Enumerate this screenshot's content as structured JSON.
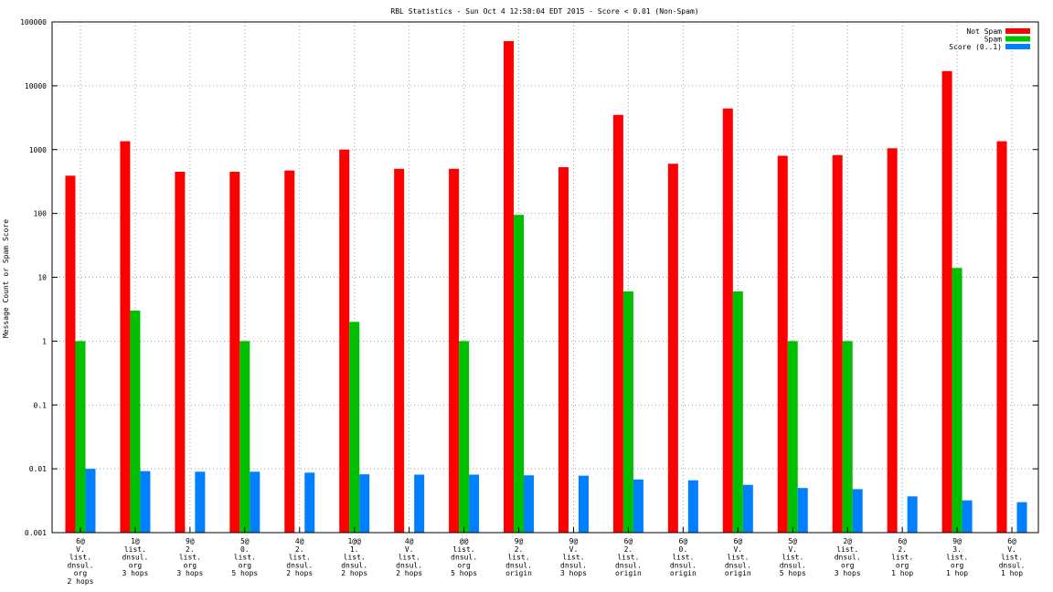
{
  "chart_data": {
    "type": "bar",
    "title": "RBL Statistics - Sun Oct  4 12:58:04 EDT 2015 - Score < 0.01 (Non-Spam)",
    "xlabel": "",
    "ylabel": "Message Count or Spam Score",
    "yscale": "log",
    "ylim": [
      0.001,
      100000
    ],
    "yticks": [
      {
        "v": 0.001,
        "label": "0.001"
      },
      {
        "v": 0.01,
        "label": "0.01"
      },
      {
        "v": 0.1,
        "label": "0.1"
      },
      {
        "v": 1,
        "label": "1"
      },
      {
        "v": 10,
        "label": "10"
      },
      {
        "v": 100,
        "label": "100"
      },
      {
        "v": 1000,
        "label": "1000"
      },
      {
        "v": 10000,
        "label": "10000"
      },
      {
        "v": 100000,
        "label": "100000"
      }
    ],
    "grid": true,
    "legend_position": "top-right",
    "categories": [
      [
        "6@",
        "V.",
        "list.",
        "dnsul.",
        "org",
        "2 hops"
      ],
      [
        "1@",
        "list.",
        "dnsul.",
        "org",
        "3 hops"
      ],
      [
        "9@",
        "2.",
        "list.",
        "org",
        "3 hops"
      ],
      [
        "5@",
        "0.",
        "list.",
        "org",
        "5 hops"
      ],
      [
        "4@",
        "2.",
        "list.",
        "dnsul.",
        "2 hops"
      ],
      [
        "1@@",
        "1.",
        "list.",
        "dnsul.",
        "2 hops"
      ],
      [
        "4@",
        "V.",
        "list.",
        "dnsul.",
        "2 hops"
      ],
      [
        "@@",
        "list.",
        "dnsul.",
        "org",
        "5 hops"
      ],
      [
        "9@",
        "2.",
        "list.",
        "dnsul.",
        "origin"
      ],
      [
        "9@",
        "V.",
        "list.",
        "dnsul.",
        "3 hops"
      ],
      [
        "6@",
        "2.",
        "list.",
        "dnsul.",
        "origin"
      ],
      [
        "6@",
        "0.",
        "list.",
        "dnsul.",
        "origin"
      ],
      [
        "6@",
        "V.",
        "list.",
        "dnsul.",
        "origin"
      ],
      [
        "5@",
        "V.",
        "list.",
        "dnsul.",
        "5 hops"
      ],
      [
        "2@",
        "list.",
        "dnsul.",
        "org",
        "3 hops"
      ],
      [
        "6@",
        "2.",
        "list.",
        "org",
        "1 hop"
      ],
      [
        "9@",
        "3.",
        "list.",
        "org",
        "1 hop"
      ],
      [
        "6@",
        "V.",
        "list.",
        "dnsul.",
        "1 hop"
      ]
    ],
    "series": [
      {
        "name": "Not Spam",
        "color": "#ff0000",
        "values": [
          390,
          1350,
          450,
          450,
          470,
          1000,
          500,
          500,
          50000,
          530,
          3500,
          600,
          4400,
          800,
          820,
          1050,
          17000,
          1350
        ]
      },
      {
        "name": "Spam",
        "color": "#00c000",
        "values": [
          1,
          3,
          null,
          1,
          null,
          2,
          null,
          1,
          95,
          null,
          6,
          null,
          6,
          1,
          1,
          null,
          14,
          null
        ]
      },
      {
        "name": "Score (0..1)",
        "color": "#0080ff",
        "values": [
          0.01,
          0.0092,
          0.009,
          0.009,
          0.0087,
          0.0082,
          0.0081,
          0.0081,
          0.0079,
          0.0078,
          0.0068,
          0.0066,
          0.0056,
          0.005,
          0.0048,
          0.0037,
          0.0032,
          0.003
        ]
      }
    ]
  }
}
